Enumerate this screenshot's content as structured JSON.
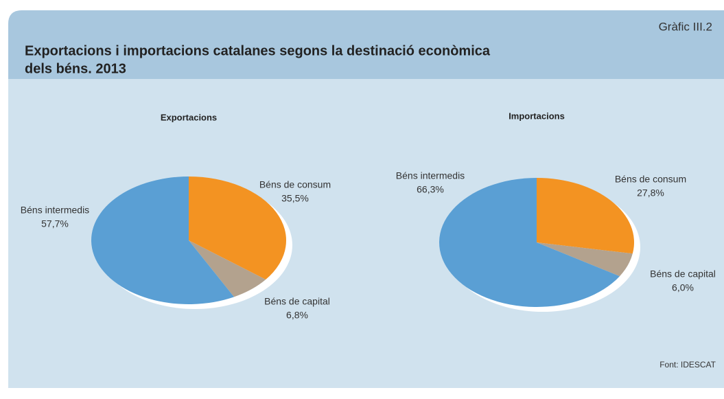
{
  "header": {
    "label": "Gràfic III.2",
    "title": [
      "Exportacions i importacions catalanes segons la destinació econòmica",
      "dels béns. 2013"
    ]
  },
  "source": "Font: IDESCAT",
  "chart_data": [
    {
      "type": "pie",
      "title": "Exportacions",
      "categories": [
        "Béns de consum",
        "Béns de capital",
        "Béns intermedis"
      ],
      "values": [
        35.5,
        6.8,
        57.7
      ],
      "value_labels": [
        "35,5%",
        "6,8%",
        "57,7%"
      ],
      "colors": [
        "#f39322",
        "#b3a28e",
        "#5a9fd4"
      ]
    },
    {
      "type": "pie",
      "title": "Importacions",
      "categories": [
        "Béns de consum",
        "Béns de capital",
        "Béns intermedis"
      ],
      "values": [
        27.8,
        6.0,
        66.3
      ],
      "value_labels": [
        "27,8%",
        "6,0%",
        "66,3%"
      ],
      "colors": [
        "#f39322",
        "#b3a28e",
        "#5a9fd4"
      ]
    }
  ]
}
